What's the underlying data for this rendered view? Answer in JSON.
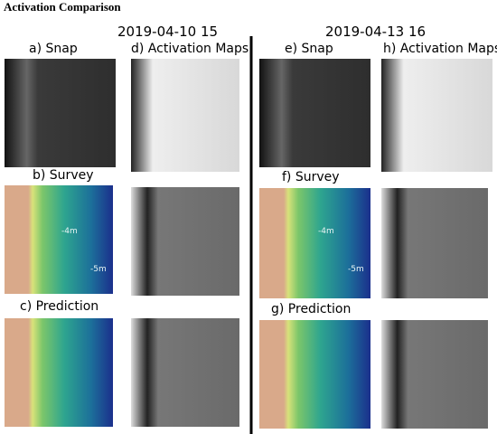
{
  "header": {
    "title": "Activation Comparison"
  },
  "columns": [
    {
      "date": "2019-04-10 15",
      "panels": [
        {
          "label": "a) Snap"
        },
        {
          "label": "d) Activation Maps"
        },
        {
          "label": "b) Survey",
          "contours": [
            "-4m",
            "-5m"
          ]
        },
        {
          "label": "c) Prediction"
        }
      ]
    },
    {
      "date": "2019-04-13 16",
      "panels": [
        {
          "label": "e) Snap"
        },
        {
          "label": "h) Activation Maps"
        },
        {
          "label": "f) Survey",
          "contours": [
            "-4m",
            "-5m"
          ]
        },
        {
          "label": "g) Prediction"
        }
      ]
    }
  ]
}
